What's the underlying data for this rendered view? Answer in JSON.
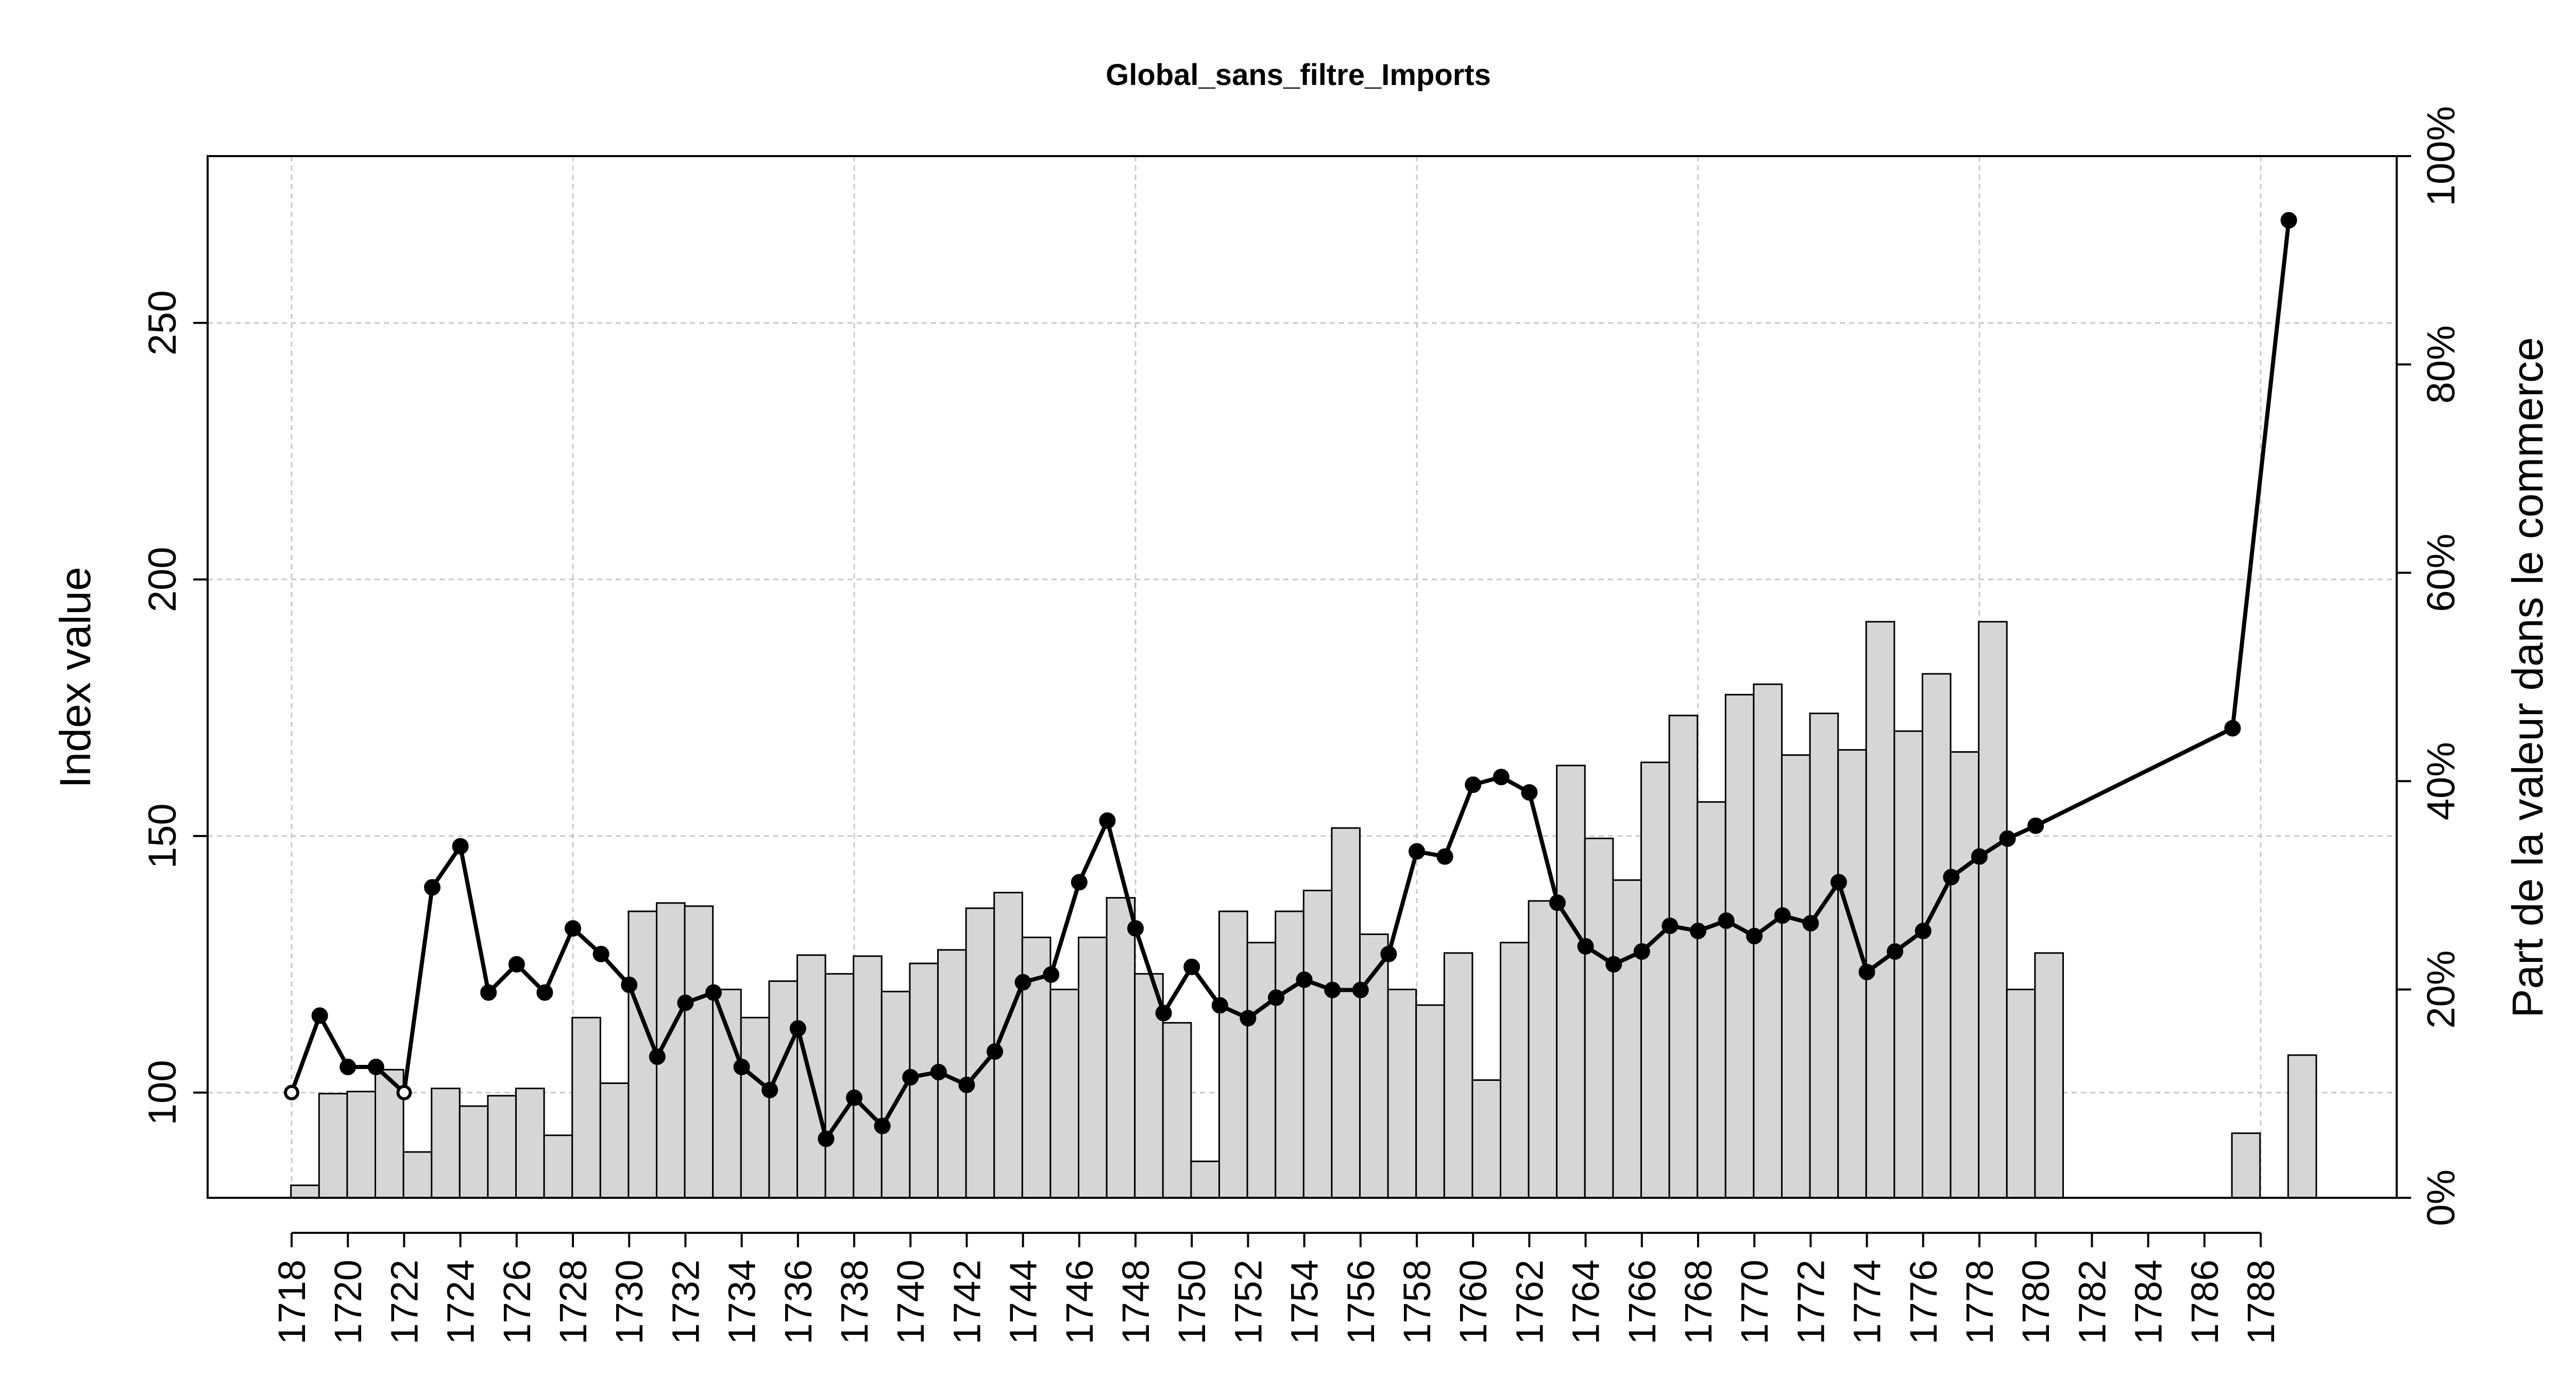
{
  "chart_data": {
    "type": "bar+line",
    "title": "Global_sans_filtre_Imports",
    "ylabel_left": "Index value",
    "ylabel_right": "Part de la valeur dans le commerce",
    "xlabel": "",
    "left_ylim": [
      79.5,
      282.5
    ],
    "left_yticks": [
      100,
      150,
      200,
      250
    ],
    "right_ylim": [
      0,
      100
    ],
    "right_yticks": [
      "0%",
      "20%",
      "40%",
      "60%",
      "80%",
      "100%"
    ],
    "x_range": [
      1718,
      1789
    ],
    "x_tick_labels": [
      "1718",
      "1720",
      "1722",
      "1724",
      "1726",
      "1728",
      "1730",
      "1732",
      "1734",
      "1736",
      "1738",
      "1740",
      "1742",
      "1744",
      "1746",
      "1748",
      "1750",
      "1752",
      "1754",
      "1756",
      "1758",
      "1760",
      "1762",
      "1764",
      "1766",
      "1768",
      "1770",
      "1772",
      "1774",
      "1776",
      "1778",
      "1780",
      "1782",
      "1784",
      "1786",
      "1788"
    ],
    "grid": true,
    "bars": {
      "name": "Part de la valeur dans le commerce (%)",
      "years": [
        1718,
        1719,
        1720,
        1721,
        1722,
        1723,
        1724,
        1725,
        1726,
        1727,
        1728,
        1729,
        1730,
        1731,
        1732,
        1733,
        1734,
        1735,
        1736,
        1737,
        1738,
        1739,
        1740,
        1741,
        1742,
        1743,
        1744,
        1745,
        1746,
        1747,
        1748,
        1749,
        1750,
        1751,
        1752,
        1753,
        1754,
        1755,
        1756,
        1757,
        1758,
        1759,
        1760,
        1761,
        1762,
        1763,
        1764,
        1765,
        1766,
        1767,
        1768,
        1769,
        1770,
        1771,
        1772,
        1773,
        1774,
        1775,
        1776,
        1777,
        1778,
        1779,
        1780,
        1787,
        1789
      ],
      "values": [
        1.2,
        10,
        10.2,
        12.3,
        4.4,
        10.5,
        8.8,
        9.8,
        10.5,
        6,
        17.3,
        11,
        27.5,
        28.3,
        28,
        20,
        17.3,
        20.8,
        23.3,
        21.5,
        23.2,
        19.8,
        22.5,
        23.8,
        27.8,
        29.3,
        25,
        20,
        25,
        28.8,
        21.5,
        16.8,
        3.5,
        27.5,
        24.5,
        27.5,
        29.5,
        35.5,
        25.3,
        20,
        18.5,
        23.5,
        11.3,
        24.5,
        28.5,
        41.5,
        34.5,
        30.5,
        41.8,
        46.3,
        38,
        48.3,
        49.3,
        42.5,
        46.5,
        43,
        55.3,
        44.8,
        50.3,
        42.8,
        55.3,
        20,
        23.5,
        6.2,
        13.7
      ]
    },
    "series": [
      {
        "name": "Index value",
        "x": [
          1718,
          1719,
          1720,
          1721,
          1722,
          1723,
          1724,
          1725,
          1726,
          1727,
          1728,
          1729,
          1730,
          1731,
          1732,
          1733,
          1734,
          1735,
          1736,
          1737,
          1738,
          1739,
          1740,
          1741,
          1742,
          1743,
          1744,
          1745,
          1746,
          1747,
          1748,
          1749,
          1750,
          1751,
          1752,
          1753,
          1754,
          1755,
          1756,
          1757,
          1758,
          1759,
          1760,
          1761,
          1762,
          1763,
          1764,
          1765,
          1766,
          1767,
          1768,
          1769,
          1770,
          1771,
          1772,
          1773,
          1774,
          1775,
          1776,
          1777,
          1778,
          1779,
          1780,
          1787,
          1789
        ],
        "values": [
          100,
          115,
          105,
          105,
          100,
          140,
          148,
          119.5,
          125,
          119.5,
          132,
          127,
          121,
          107,
          117.5,
          119.5,
          105,
          100.5,
          112.5,
          91,
          99,
          93.5,
          103,
          104,
          101.5,
          108,
          121.5,
          123,
          141,
          153,
          132,
          115.5,
          124.5,
          117,
          114.5,
          118.5,
          122,
          120,
          120,
          127,
          147,
          146,
          160,
          161.5,
          158.5,
          137,
          128.5,
          125,
          127.5,
          132.5,
          131.5,
          133.5,
          130.5,
          134.5,
          133,
          141,
          123.5,
          127.5,
          131.5,
          142,
          146,
          149.5,
          152,
          171,
          270
        ],
        "open_markers_years": [
          1718,
          1722
        ]
      }
    ]
  }
}
